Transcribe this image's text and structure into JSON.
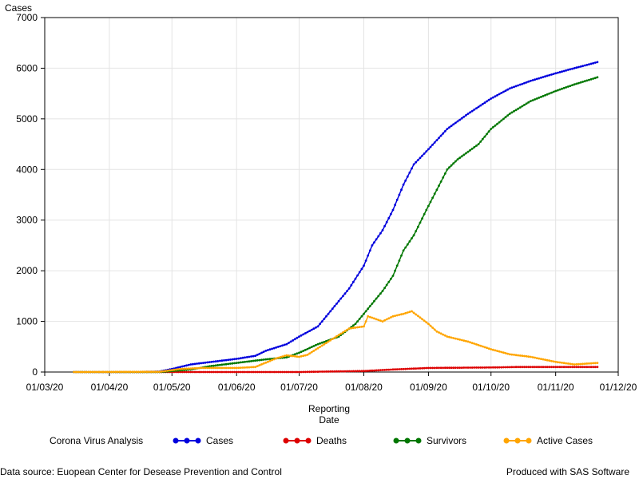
{
  "chart_data": {
    "type": "line",
    "y_axis_title": "Cases",
    "x_axis_title_line1": "Reporting",
    "x_axis_title_line2": "Date",
    "ylim": [
      0,
      7000
    ],
    "yticks": [
      0,
      1000,
      2000,
      3000,
      4000,
      5000,
      6000,
      7000
    ],
    "xticks": [
      "01/03/20",
      "01/04/20",
      "01/05/20",
      "01/06/20",
      "01/07/20",
      "01/08/20",
      "01/09/20",
      "01/10/20",
      "01/11/20",
      "01/12/20"
    ],
    "grid": true,
    "legend_position": "bottom",
    "legend_title": "Corona Virus Analysis",
    "series": [
      {
        "name": "Cases",
        "color": "#0000dd",
        "points": [
          [
            "2020-03-15",
            0
          ],
          [
            "2020-04-15",
            0
          ],
          [
            "2020-04-25",
            10
          ],
          [
            "2020-05-01",
            60
          ],
          [
            "2020-05-10",
            150
          ],
          [
            "2020-05-20",
            200
          ],
          [
            "2020-06-01",
            260
          ],
          [
            "2020-06-10",
            320
          ],
          [
            "2020-06-15",
            420
          ],
          [
            "2020-06-25",
            550
          ],
          [
            "2020-07-01",
            700
          ],
          [
            "2020-07-10",
            900
          ],
          [
            "2020-07-20",
            1400
          ],
          [
            "2020-07-25",
            1650
          ],
          [
            "2020-08-01",
            2100
          ],
          [
            "2020-08-05",
            2500
          ],
          [
            "2020-08-10",
            2800
          ],
          [
            "2020-08-15",
            3200
          ],
          [
            "2020-08-20",
            3700
          ],
          [
            "2020-08-25",
            4100
          ],
          [
            "2020-09-01",
            4400
          ],
          [
            "2020-09-10",
            4800
          ],
          [
            "2020-09-20",
            5100
          ],
          [
            "2020-10-01",
            5400
          ],
          [
            "2020-10-10",
            5600
          ],
          [
            "2020-10-20",
            5750
          ],
          [
            "2020-11-01",
            5900
          ],
          [
            "2020-11-10",
            6000
          ],
          [
            "2020-11-21",
            6120
          ]
        ]
      },
      {
        "name": "Deaths",
        "color": "#dd0000",
        "points": [
          [
            "2020-03-15",
            0
          ],
          [
            "2020-07-01",
            0
          ],
          [
            "2020-07-15",
            10
          ],
          [
            "2020-08-01",
            20
          ],
          [
            "2020-08-15",
            50
          ],
          [
            "2020-09-01",
            80
          ],
          [
            "2020-09-15",
            85
          ],
          [
            "2020-10-01",
            90
          ],
          [
            "2020-10-15",
            100
          ],
          [
            "2020-11-21",
            100
          ]
        ]
      },
      {
        "name": "Survivors",
        "color": "#007700",
        "points": [
          [
            "2020-03-15",
            0
          ],
          [
            "2020-04-25",
            0
          ],
          [
            "2020-05-10",
            50
          ],
          [
            "2020-05-20",
            120
          ],
          [
            "2020-06-01",
            180
          ],
          [
            "2020-06-15",
            250
          ],
          [
            "2020-06-25",
            290
          ],
          [
            "2020-07-01",
            380
          ],
          [
            "2020-07-10",
            550
          ],
          [
            "2020-07-20",
            700
          ],
          [
            "2020-07-28",
            950
          ],
          [
            "2020-08-05",
            1350
          ],
          [
            "2020-08-10",
            1600
          ],
          [
            "2020-08-15",
            1900
          ],
          [
            "2020-08-20",
            2400
          ],
          [
            "2020-08-25",
            2700
          ],
          [
            "2020-08-31",
            3200
          ],
          [
            "2020-09-05",
            3600
          ],
          [
            "2020-09-10",
            4000
          ],
          [
            "2020-09-15",
            4200
          ],
          [
            "2020-09-25",
            4500
          ],
          [
            "2020-10-01",
            4800
          ],
          [
            "2020-10-10",
            5100
          ],
          [
            "2020-10-20",
            5350
          ],
          [
            "2020-11-01",
            5550
          ],
          [
            "2020-11-10",
            5680
          ],
          [
            "2020-11-21",
            5820
          ]
        ]
      },
      {
        "name": "Active Cases",
        "color": "#ffa500",
        "points": [
          [
            "2020-03-15",
            0
          ],
          [
            "2020-04-25",
            5
          ],
          [
            "2020-05-05",
            60
          ],
          [
            "2020-05-15",
            80
          ],
          [
            "2020-06-01",
            80
          ],
          [
            "2020-06-10",
            100
          ],
          [
            "2020-06-20",
            270
          ],
          [
            "2020-06-25",
            330
          ],
          [
            "2020-07-01",
            300
          ],
          [
            "2020-07-05",
            340
          ],
          [
            "2020-07-15",
            600
          ],
          [
            "2020-07-25",
            860
          ],
          [
            "2020-08-01",
            900
          ],
          [
            "2020-08-03",
            1100
          ],
          [
            "2020-08-10",
            1000
          ],
          [
            "2020-08-15",
            1100
          ],
          [
            "2020-08-20",
            1150
          ],
          [
            "2020-08-24",
            1200
          ],
          [
            "2020-09-01",
            950
          ],
          [
            "2020-09-05",
            800
          ],
          [
            "2020-09-10",
            700
          ],
          [
            "2020-09-20",
            600
          ],
          [
            "2020-10-01",
            450
          ],
          [
            "2020-10-10",
            350
          ],
          [
            "2020-10-20",
            300
          ],
          [
            "2020-11-01",
            200
          ],
          [
            "2020-11-10",
            150
          ],
          [
            "2020-11-21",
            180
          ]
        ]
      }
    ]
  },
  "footer": {
    "source": "Data source: Euopean Center for Desease Prevention and Control",
    "credit": "Produced with SAS Software"
  }
}
